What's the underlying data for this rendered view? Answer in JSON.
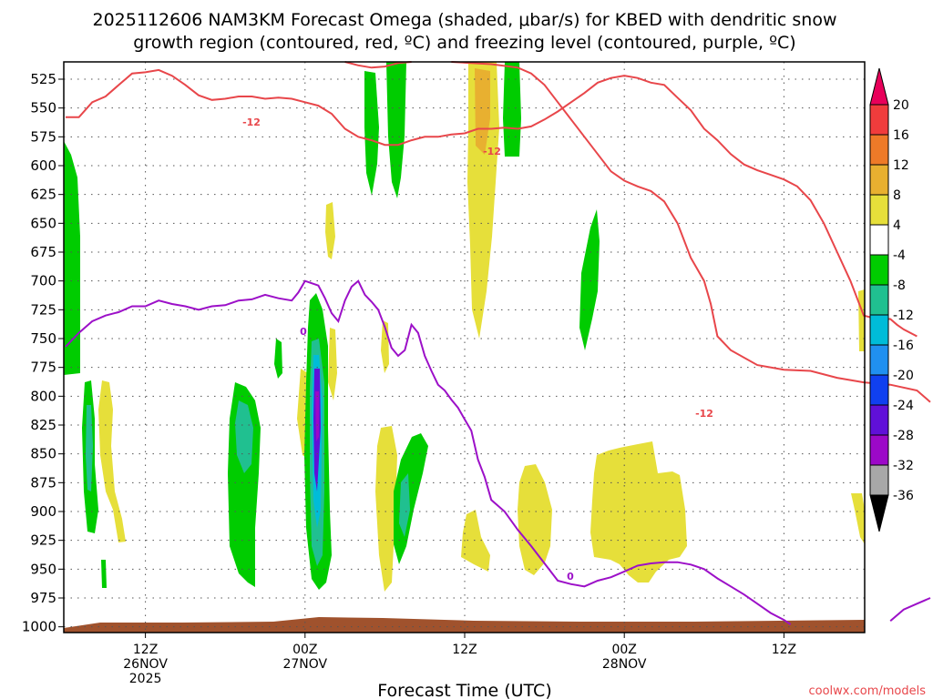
{
  "chart_data": {
    "type": "heatmap",
    "title_line1": "2025112606 NAM3KM Forecast Omega (shaded, μbar/s) for KBED with dendritic snow",
    "title_line2": "growth region (contoured, red, ºC) and freezing level (contoured, purple, ºC)",
    "xlabel": "Forecast Time (UTC)",
    "y_ticks": [
      525,
      550,
      575,
      600,
      625,
      650,
      675,
      700,
      725,
      750,
      775,
      800,
      825,
      850,
      875,
      900,
      925,
      950,
      975,
      1000
    ],
    "y_axis": "pressure (hPa), inverted",
    "ylim": [
      1005,
      510
    ],
    "xlim_hours": [
      0,
      60
    ],
    "x_ticks": [
      {
        "hour": 6,
        "line1": "12Z",
        "line2": "26NOV",
        "line3": "2025"
      },
      {
        "hour": 18,
        "line1": "00Z",
        "line2": "27NOV",
        "line3": ""
      },
      {
        "hour": 30,
        "line1": "12Z",
        "line2": "",
        "line3": ""
      },
      {
        "hour": 42,
        "line1": "00Z",
        "line2": "28NOV",
        "line3": ""
      },
      {
        "hour": 54,
        "line1": "12Z",
        "line2": "",
        "line3": ""
      }
    ],
    "colorbar": {
      "labels": [
        "20",
        "16",
        "12",
        "8",
        "4",
        "-4",
        "-8",
        "-12",
        "-16",
        "-20",
        "-24",
        "-28",
        "-32",
        "-36"
      ],
      "colors": [
        "#e8005a",
        "#f03c3c",
        "#ee7a28",
        "#e8b030",
        "#e6df3a",
        "#ffffff",
        "#00cc00",
        "#20c090",
        "#00bcd8",
        "#2090f0",
        "#1040f0",
        "#6010d8",
        "#9c08c8",
        "#a8a8a8",
        "#000000"
      ]
    },
    "contour_labels": {
      "dgz": "-12",
      "freezing": "0"
    },
    "series": [
      {
        "name": "dgz_-12C_upper",
        "color": "#e8464a",
        "points": [
          [
            0,
            558
          ],
          [
            1,
            558
          ],
          [
            2,
            545
          ],
          [
            3,
            540
          ],
          [
            4,
            530
          ],
          [
            5,
            520
          ],
          [
            6,
            519
          ],
          [
            7,
            517
          ],
          [
            8,
            522
          ],
          [
            9,
            530
          ],
          [
            10,
            539
          ],
          [
            11,
            543
          ],
          [
            12,
            542
          ],
          [
            13,
            540
          ],
          [
            14,
            540
          ],
          [
            15,
            542
          ],
          [
            16,
            541
          ],
          [
            17,
            542
          ],
          [
            18,
            545
          ],
          [
            19,
            548
          ],
          [
            20,
            555
          ],
          [
            21,
            568
          ],
          [
            22,
            575
          ],
          [
            23,
            578
          ],
          [
            24,
            582
          ],
          [
            25,
            582
          ],
          [
            26,
            578
          ],
          [
            27,
            575
          ],
          [
            28,
            575
          ],
          [
            29,
            573
          ],
          [
            30,
            572
          ],
          [
            31,
            568
          ],
          [
            32,
            568
          ],
          [
            33,
            567
          ],
          [
            34,
            568
          ],
          [
            35,
            566
          ],
          [
            36,
            560
          ],
          [
            37,
            553
          ],
          [
            38,
            545
          ],
          [
            39,
            537
          ],
          [
            40,
            528
          ],
          [
            41,
            524
          ],
          [
            42,
            522
          ],
          [
            43,
            524
          ],
          [
            44,
            528
          ],
          [
            45,
            530
          ],
          [
            46,
            541
          ],
          [
            47,
            552
          ],
          [
            48,
            568
          ],
          [
            49,
            578
          ],
          [
            50,
            590
          ],
          [
            51,
            599
          ],
          [
            52,
            604
          ],
          [
            53,
            608
          ],
          [
            54,
            612
          ],
          [
            55,
            618
          ],
          [
            56,
            630
          ],
          [
            57,
            650
          ],
          [
            58,
            675
          ],
          [
            59,
            700
          ],
          [
            59.5,
            715
          ],
          [
            60,
            730
          ],
          [
            61,
            733
          ],
          [
            62,
            733
          ],
          [
            62.5,
            738
          ],
          [
            63,
            742
          ],
          [
            64,
            748
          ]
        ]
      },
      {
        "name": "dgz_-12C_lower",
        "color": "#e8464a",
        "points": [
          [
            21,
            510
          ],
          [
            22,
            513
          ],
          [
            23,
            515
          ],
          [
            24,
            514
          ],
          [
            25,
            511
          ],
          [
            26,
            510
          ]
        ]
      },
      {
        "name": "dgz_-12C_lower_right",
        "color": "#e8464a",
        "points": [
          [
            29,
            510
          ],
          [
            32,
            512
          ],
          [
            34,
            515
          ],
          [
            35,
            520
          ],
          [
            36,
            530
          ],
          [
            37,
            545
          ],
          [
            38,
            560
          ],
          [
            39,
            575
          ],
          [
            40,
            590
          ],
          [
            41,
            605
          ],
          [
            42,
            613
          ],
          [
            43,
            618
          ],
          [
            44,
            622
          ],
          [
            45,
            631
          ],
          [
            46,
            650
          ],
          [
            47,
            680
          ],
          [
            48,
            700
          ],
          [
            48.5,
            720
          ],
          [
            49,
            748
          ],
          [
            50,
            760
          ],
          [
            52,
            773
          ],
          [
            54,
            777
          ],
          [
            56,
            778
          ],
          [
            58,
            784
          ],
          [
            60,
            788
          ],
          [
            62,
            790
          ],
          [
            64,
            795
          ],
          [
            65,
            805
          ]
        ]
      },
      {
        "name": "freezing_level_0C",
        "color": "#9c10c8",
        "points": [
          [
            0,
            757
          ],
          [
            1,
            745
          ],
          [
            2,
            735
          ],
          [
            3,
            730
          ],
          [
            4,
            727
          ],
          [
            5,
            722
          ],
          [
            6,
            722
          ],
          [
            7,
            717
          ],
          [
            8,
            720
          ],
          [
            9,
            722
          ],
          [
            10,
            725
          ],
          [
            11,
            722
          ],
          [
            12,
            721
          ],
          [
            13,
            717
          ],
          [
            14,
            716
          ],
          [
            15,
            712
          ],
          [
            16,
            715
          ],
          [
            17,
            717
          ],
          [
            17.5,
            710
          ],
          [
            18,
            700
          ],
          [
            18.5,
            702
          ],
          [
            19,
            704
          ],
          [
            19.5,
            715
          ],
          [
            20,
            728
          ],
          [
            20.5,
            735
          ],
          [
            21,
            717
          ],
          [
            21.5,
            705
          ],
          [
            22,
            700
          ],
          [
            22.5,
            712
          ],
          [
            23,
            718
          ],
          [
            23.5,
            725
          ],
          [
            24,
            740
          ],
          [
            24.5,
            758
          ],
          [
            25,
            765
          ],
          [
            25.5,
            760
          ],
          [
            26,
            738
          ],
          [
            26.5,
            745
          ],
          [
            27,
            765
          ],
          [
            27.5,
            778
          ],
          [
            28,
            790
          ],
          [
            28.5,
            795
          ],
          [
            29,
            803
          ],
          [
            29.5,
            810
          ],
          [
            30,
            820
          ],
          [
            30.5,
            830
          ],
          [
            31,
            855
          ],
          [
            31.5,
            870
          ],
          [
            32,
            890
          ],
          [
            33,
            900
          ],
          [
            34,
            916
          ],
          [
            35,
            930
          ],
          [
            36,
            945
          ],
          [
            37,
            960
          ],
          [
            38,
            963
          ],
          [
            39,
            965
          ],
          [
            40,
            960
          ],
          [
            41,
            957
          ],
          [
            42,
            952
          ],
          [
            43,
            947
          ],
          [
            44,
            945
          ],
          [
            45,
            944
          ],
          [
            46,
            944
          ],
          [
            47,
            946
          ],
          [
            48,
            950
          ],
          [
            49,
            958
          ],
          [
            50,
            965
          ],
          [
            51,
            972
          ],
          [
            52,
            980
          ],
          [
            53,
            988
          ],
          [
            54,
            994
          ],
          [
            54.5,
            998
          ]
        ]
      },
      {
        "name": "freezing_level_0C_right",
        "color": "#9c10c8",
        "points": [
          [
            62,
            995
          ],
          [
            63,
            985
          ],
          [
            64,
            980
          ],
          [
            65,
            975
          ]
        ]
      }
    ],
    "omega_regions_note": "shaded omega: green -4 to -8, teal -8 to -12, cyan -12 to -16, violet -28 to -32 (strongest near 00Z 27NOV ~780 hPa), yellow 4 to 8, orange 8 to 12 ascents"
  },
  "credit": "coolwx.com/models",
  "terrain_color": "#a0522d"
}
